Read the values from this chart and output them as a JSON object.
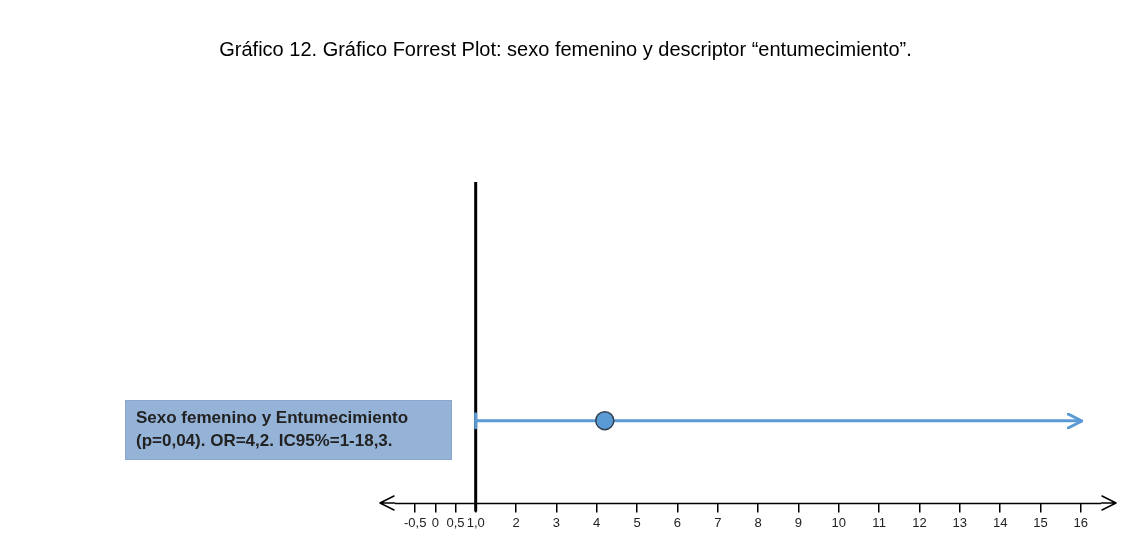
{
  "chart_data": {
    "type": "scatter",
    "title": "Gráfico 12. Gráfico Forrest Plot: sexo femenino y descriptor “entumecimiento”.",
    "orientation": "horizontal",
    "categories": [
      null
    ],
    "series": [
      {
        "color": "#5b9bd5",
        "values": [
          4.2
        ],
        "errors": [
          [
            1,
            16
          ]
        ]
      }
    ],
    "xlim": [
      -1,
      16.5
    ],
    "xticks": [
      {
        "value": -0.5,
        "label": "-0,5"
      },
      0,
      {
        "value": 0.5,
        "label": "0,5"
      },
      {
        "value": 1,
        "label": "1,0"
      },
      2,
      3,
      4,
      5,
      6,
      7,
      8,
      9,
      10,
      11,
      12,
      13,
      14,
      15,
      16
    ],
    "ref_lines": [
      {
        "axis": "x",
        "value": 1,
        "color": "#000000"
      }
    ],
    "annotations": [
      "Sexo femenino y Entumecimiento (p=0,04). OR=4,2. IC95%=1-18,3."
    ],
    "marker": "circle",
    "grid": false,
    "legend": false
  }
}
